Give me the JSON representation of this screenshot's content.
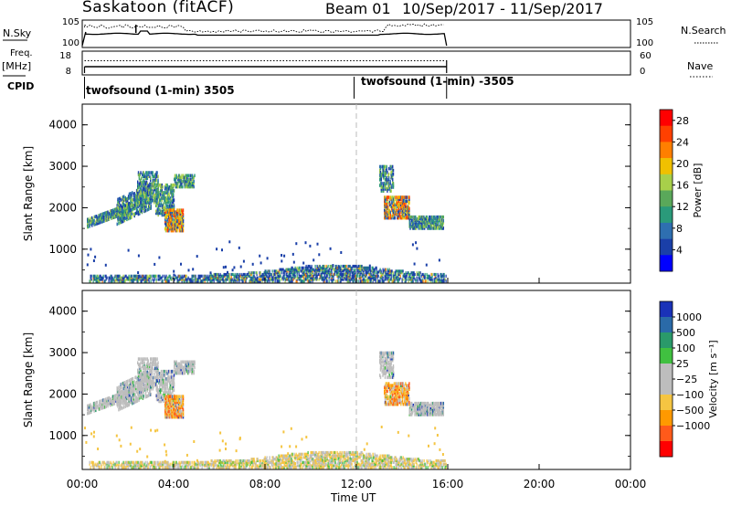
{
  "header": {
    "station": "Saskatoon (fitACF)",
    "beam": "Beam 01",
    "dates": "10/Sep/2017 - 11/Sep/2017"
  },
  "left_labels": {
    "nsky": "N.Sky",
    "freq": "Freq.",
    "mhz": "[MHz]",
    "cpid": "CPID"
  },
  "right_labels": {
    "nsearch": "N.Search",
    "nave": "Nave"
  },
  "cpid_labels": [
    "twofsound (1-min) 3505",
    "twofsound (1-min) -3505"
  ],
  "colors": {
    "power": [
      "#0000ff",
      "#1a3fa8",
      "#2e6fb0",
      "#2a9a7a",
      "#5aa85a",
      "#a8d04a",
      "#f0c000",
      "#ff7f00",
      "#ff4000",
      "#ff0000"
    ],
    "velocity_pos": [
      "#1a32b8",
      "#2a6aa8",
      "#2a9a6a",
      "#40c040"
    ],
    "velocity_neg": [
      "#f5c542",
      "#ff9900",
      "#ff5a1a",
      "#ff0000"
    ],
    "ground": "#bdbdbd"
  },
  "chart_data": [
    {
      "type": "line",
      "name": "N.Sky / N.Search",
      "ytick_labels_left": [
        "10^5",
        "10^0"
      ],
      "ytick_labels_right": [
        "10^5",
        "10^0"
      ],
      "x": [
        0,
        16
      ],
      "note_series": [
        "N.Sky",
        "N.Search"
      ]
    },
    {
      "type": "line",
      "name": "Freq / Nave",
      "ytick_labels_left": [
        "18",
        "8"
      ],
      "ytick_labels_right": [
        "60",
        "0"
      ]
    },
    {
      "type": "heatmap",
      "ylabel": "Slant Range [km]",
      "yticks": [
        "4000",
        "3000",
        "2000",
        "1000"
      ],
      "ylim": [
        180,
        4500
      ],
      "xlim": [
        0,
        24
      ],
      "colorbar": {
        "label": "Power [dB]",
        "ticks": [
          "28",
          "24",
          "20",
          "16",
          "12",
          "8",
          "4"
        ],
        "range": [
          0,
          30
        ]
      }
    },
    {
      "type": "heatmap",
      "ylabel": "Slant Range [km]",
      "yticks": [
        "4000",
        "3000",
        "2000",
        "1000"
      ],
      "ylim": [
        180,
        4500
      ],
      "xlim": [
        0,
        24
      ],
      "colorbar": {
        "label": "Velocity [m s^-1]",
        "ticks": [
          "1000",
          "500",
          "100",
          "25",
          "-25",
          "-100",
          "-500",
          "-1000"
        ]
      }
    }
  ],
  "x_axis": {
    "label": "Time UT",
    "ticks": [
      "00:00",
      "04:00",
      "08:00",
      "12:00",
      "16:00",
      "20:00",
      "00:00"
    ],
    "tick_hours": [
      0,
      4,
      8,
      12,
      16,
      20,
      24
    ]
  }
}
